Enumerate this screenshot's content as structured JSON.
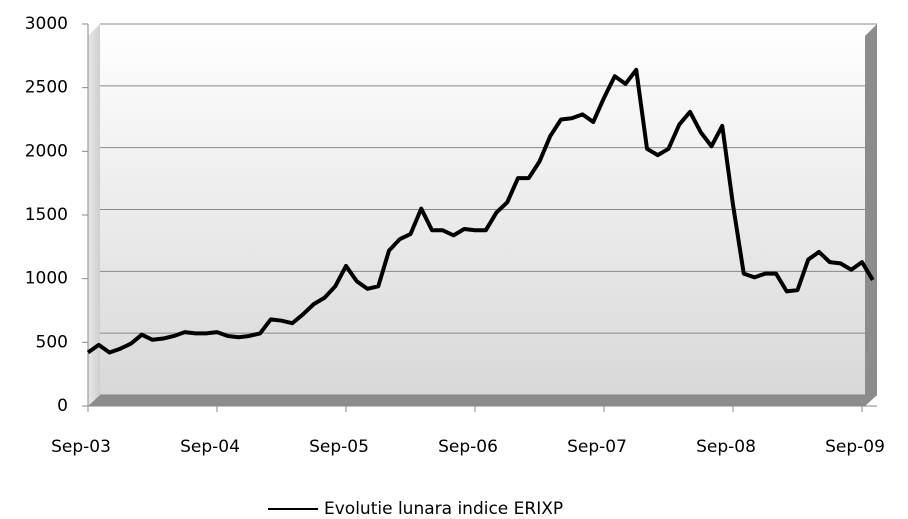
{
  "chart_data": {
    "type": "line",
    "categories": [
      "Sep-03",
      null,
      null,
      null,
      null,
      null,
      null,
      null,
      null,
      null,
      null,
      null,
      "Sep-04",
      null,
      null,
      null,
      null,
      null,
      null,
      null,
      null,
      null,
      null,
      null,
      "Sep-05",
      null,
      null,
      null,
      null,
      null,
      null,
      null,
      null,
      null,
      null,
      null,
      "Sep-06",
      null,
      null,
      null,
      null,
      null,
      null,
      null,
      null,
      null,
      null,
      null,
      "Sep-07",
      null,
      null,
      null,
      null,
      null,
      null,
      null,
      null,
      null,
      null,
      null,
      "Sep-08",
      null,
      null,
      null,
      null,
      null,
      null,
      null,
      null,
      null,
      null,
      null,
      "Sep-09",
      null
    ],
    "series": [
      {
        "name": "Evolutie lunara indice ERIXP",
        "color": "#000000",
        "values": [
          420,
          480,
          420,
          450,
          490,
          560,
          520,
          530,
          550,
          580,
          570,
          570,
          580,
          550,
          540,
          550,
          570,
          680,
          670,
          650,
          720,
          800,
          850,
          940,
          1100,
          980,
          920,
          940,
          1220,
          1310,
          1350,
          1550,
          1380,
          1380,
          1340,
          1390,
          1380,
          1380,
          1520,
          1600,
          1790,
          1790,
          1920,
          2120,
          2250,
          2260,
          2290,
          2230,
          2420,
          2590,
          2530,
          2640,
          2020,
          1970,
          2020,
          2210,
          2310,
          2150,
          2040,
          2200,
          1580,
          1040,
          1010,
          1040,
          1040,
          900,
          910,
          1150,
          1210,
          1130,
          1120,
          1070,
          1130,
          990
        ]
      }
    ],
    "ylim": [
      0,
      3000
    ],
    "yticks": [
      0,
      500,
      1000,
      1500,
      2000,
      2500,
      3000
    ],
    "grid": true,
    "legend": "bottom"
  }
}
